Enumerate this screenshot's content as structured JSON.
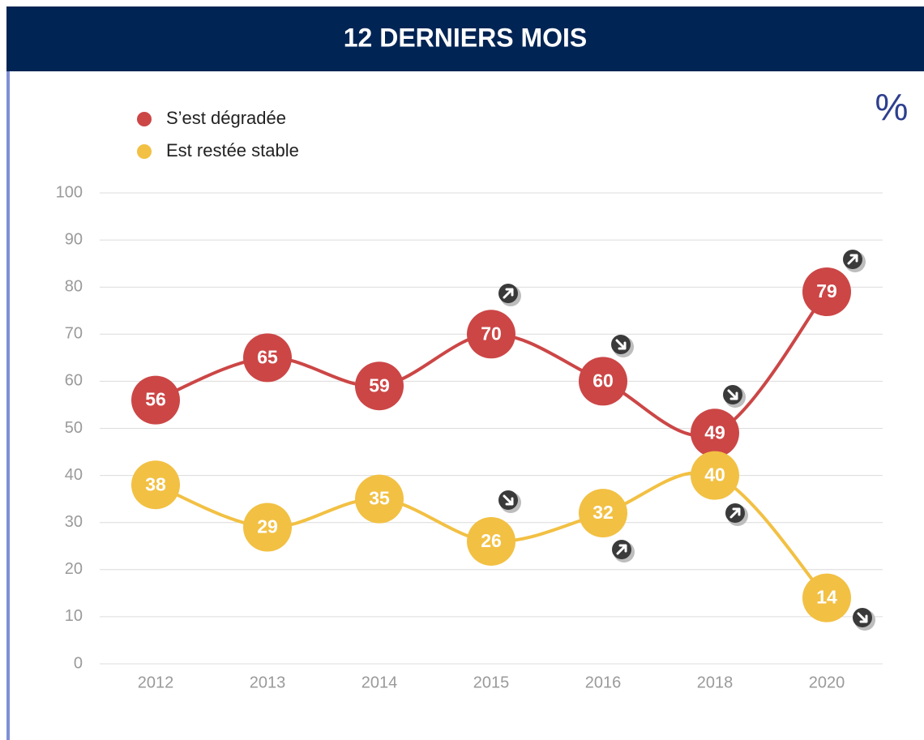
{
  "chart_data": {
    "type": "line",
    "title": "12 DERNIERS MOIS",
    "unit": "%",
    "categories": [
      "2012",
      "2013",
      "2014",
      "2015",
      "2016",
      "2018",
      "2020"
    ],
    "series": [
      {
        "name": "S’est dégradée",
        "color": "#cc4646",
        "values": [
          56,
          65,
          59,
          70,
          60,
          49,
          79
        ]
      },
      {
        "name": "Est restée stable",
        "color": "#f2c043",
        "values": [
          38,
          29,
          35,
          26,
          32,
          40,
          14
        ]
      }
    ],
    "ylim": [
      0,
      100
    ],
    "yticks": [
      0,
      10,
      20,
      30,
      40,
      50,
      60,
      70,
      80,
      90,
      100
    ],
    "grid": true
  }
}
